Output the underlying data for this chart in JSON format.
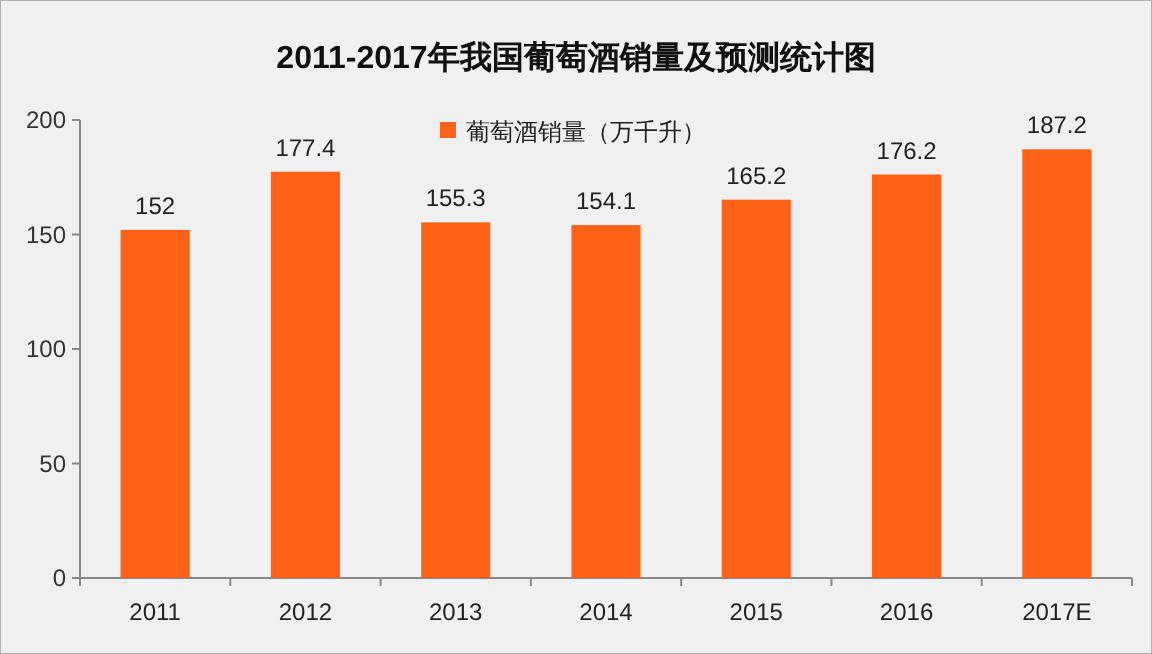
{
  "chart_data": {
    "type": "bar",
    "title": "2011-2017年我国葡萄酒销量及预测统计图",
    "categories": [
      "2011",
      "2012",
      "2013",
      "2014",
      "2015",
      "2016",
      "2017E"
    ],
    "series": [
      {
        "name": "葡萄酒销量（万千升）",
        "color": "#ff6116",
        "values": [
          152,
          177.4,
          155.3,
          154.1,
          165.2,
          176.2,
          187.2
        ]
      }
    ],
    "ylim": [
      0,
      200
    ],
    "yticks": [
      0,
      50,
      100,
      150,
      200
    ],
    "grid": false,
    "legend": "top",
    "data_labels": true
  }
}
